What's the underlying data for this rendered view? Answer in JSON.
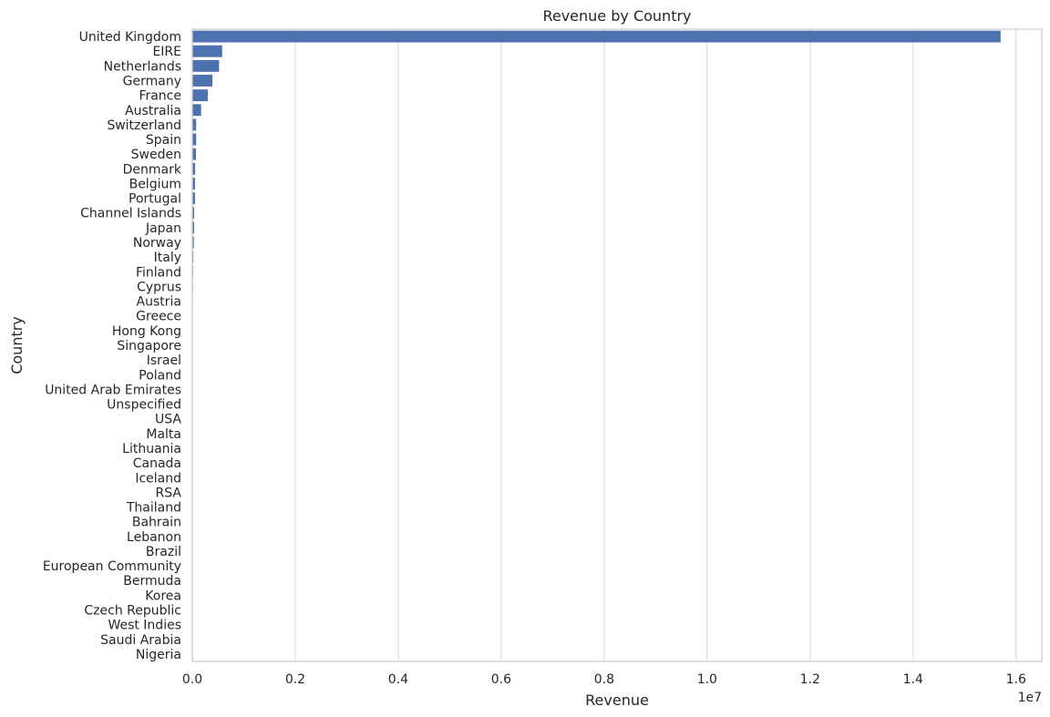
{
  "chart_data": {
    "type": "bar",
    "orientation": "horizontal",
    "title": "Revenue by Country",
    "xlabel": "Revenue",
    "ylabel": "Country",
    "x_scale_label": "1e7",
    "xlim": [
      0,
      1.65
    ],
    "x_ticks": [
      "0.0",
      "0.2",
      "0.4",
      "0.6",
      "0.8",
      "1.0",
      "1.2",
      "1.4",
      "1.6"
    ],
    "grid": "vertical",
    "bar_color": "#4c72b0",
    "categories": [
      "United Kingdom",
      "EIRE",
      "Netherlands",
      "Germany",
      "France",
      "Australia",
      "Switzerland",
      "Spain",
      "Sweden",
      "Denmark",
      "Belgium",
      "Portugal",
      "Channel Islands",
      "Japan",
      "Norway",
      "Italy",
      "Finland",
      "Cyprus",
      "Austria",
      "Greece",
      "Hong Kong",
      "Singapore",
      "Israel",
      "Poland",
      "United Arab Emirates",
      "Unspecified",
      "USA",
      "Malta",
      "Lithuania",
      "Canada",
      "Iceland",
      "RSA",
      "Thailand",
      "Bahrain",
      "Lebanon",
      "Brazil",
      "European Community",
      "Bermuda",
      "Korea",
      "Czech Republic",
      "West Indies",
      "Saudi Arabia",
      "Nigeria"
    ],
    "values": [
      1.57,
      0.058,
      0.052,
      0.039,
      0.03,
      0.017,
      0.0075,
      0.0075,
      0.007,
      0.0055,
      0.0052,
      0.0052,
      0.0035,
      0.0035,
      0.003,
      0.002,
      0.0015,
      0.0012,
      0.001,
      0.0009,
      0.0008,
      0.0007,
      0.0006,
      0.0006,
      0.0005,
      0.0005,
      0.0004,
      0.0003,
      0.0002,
      0.0002,
      0.0002,
      0.0002,
      0.0001,
      0.0001,
      0.0001,
      0.0001,
      0.0001,
      5e-05,
      5e-05,
      5e-05,
      5e-05,
      3e-05,
      3e-05
    ]
  }
}
